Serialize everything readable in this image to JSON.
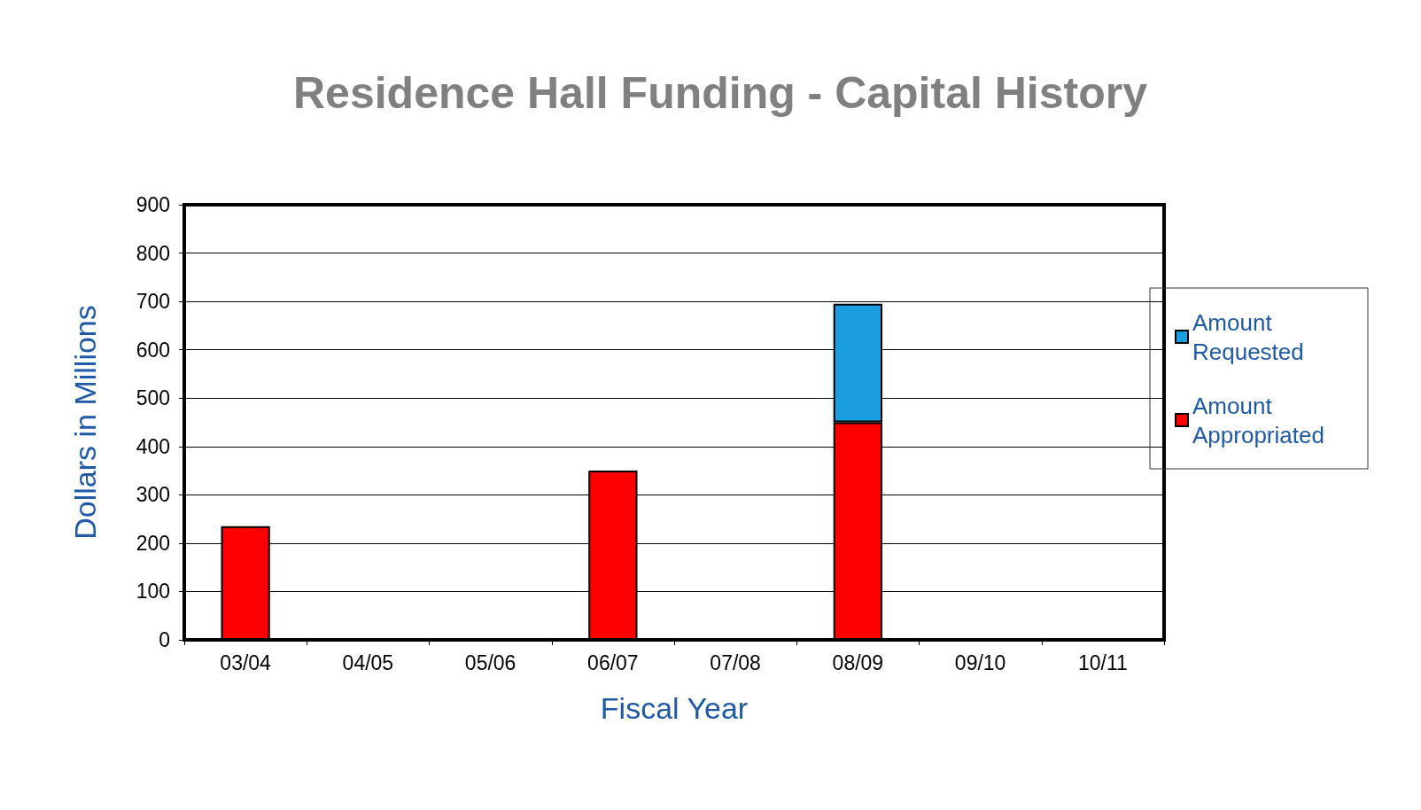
{
  "chart_data": {
    "type": "bar",
    "title": "Residence Hall Funding - Capital History",
    "xlabel": "Fiscal Year",
    "ylabel": "Dollars in Millions",
    "categories": [
      "03/04",
      "04/05",
      "05/06",
      "06/07",
      "07/08",
      "08/09",
      "09/10",
      "10/11"
    ],
    "series": [
      {
        "name": "Amount Appropriated",
        "color": "#ff0000",
        "values": [
          235,
          null,
          null,
          350,
          null,
          450,
          null,
          null
        ]
      },
      {
        "name": "Amount Requested",
        "color": "#1a9ee0",
        "values": [
          null,
          null,
          null,
          null,
          null,
          245,
          null,
          null
        ]
      }
    ],
    "stacked": true,
    "ylim": [
      0,
      900
    ],
    "yticks": [
      0,
      100,
      200,
      300,
      400,
      500,
      600,
      700,
      800,
      900
    ],
    "grid": "y",
    "legend": "right"
  }
}
